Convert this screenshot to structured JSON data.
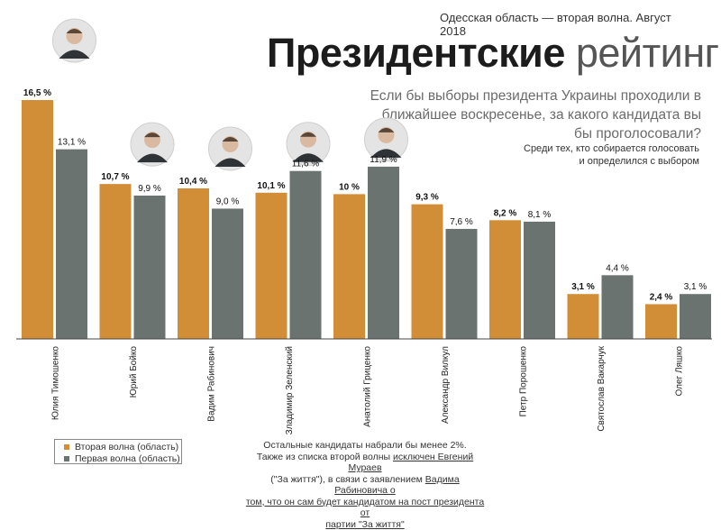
{
  "header": {
    "wave_note": "Одесская область — вторая волна. Август 2018",
    "title_bold": "Президентские",
    "title_light": "рейтинги",
    "question": "Если бы выборы президента Украины проходили в ближайшее воскресенье, за какого кандидата вы бы проголосовали?",
    "subnote_line1": "Среди тех, кто собирается голосовать",
    "subnote_line2": "и определился с выбором"
  },
  "legend": {
    "second_wave": "Вторая волна (область)",
    "first_wave": "Первая волна (область)"
  },
  "footer": {
    "line1": "Остальные кандидаты набрали бы менее 2%.",
    "line2_pre": "Также из списка второй волны ",
    "line2_link": "исключен Евгений Мураев",
    "line3_pre": "(\"За життя\"), в связи с заявлением ",
    "line3_link": "Вадима Рабиновича о",
    "line4_link": "том, что он сам будет кандидатом на пост президента от",
    "line5_link": "партии \"За життя\""
  },
  "colors": {
    "second_wave": "#d18e36",
    "first_wave": "#6b7371"
  },
  "chart_data": {
    "type": "bar",
    "categories": [
      "Юлия Тимошенко",
      "Юрий Бойко",
      "Вадим Рабинович",
      "Зладимир Зеленский",
      "Анатолий Гриценко",
      "Александр Вилкул",
      "Петр Порошенко",
      "Святослав Вакарчук",
      "Олег Ляшко"
    ],
    "series": [
      {
        "name": "Вторая волна (область)",
        "values": [
          16.5,
          10.7,
          10.4,
          10.1,
          10,
          9.3,
          8.2,
          3.1,
          2.4
        ],
        "labels": [
          "16,5 %",
          "10,7 %",
          "10,4 %",
          "10,1 %",
          "10 %",
          "9,3 %",
          "8,2 %",
          "3,1 %",
          "2,4 %"
        ]
      },
      {
        "name": "Первая волна (область)",
        "values": [
          13.1,
          9.9,
          9.0,
          11.6,
          11.9,
          7.6,
          8.1,
          4.4,
          3.1
        ],
        "labels": [
          "13,1 %",
          "9,9 %",
          "9,0 %",
          "11,6 %",
          "11,9 %",
          "7,6 %",
          "8,1 %",
          "4,4 %",
          "3,1 %"
        ]
      }
    ],
    "portraits_for_categories": [
      0,
      1,
      2,
      3,
      4
    ],
    "ylim": [
      0,
      17
    ]
  }
}
